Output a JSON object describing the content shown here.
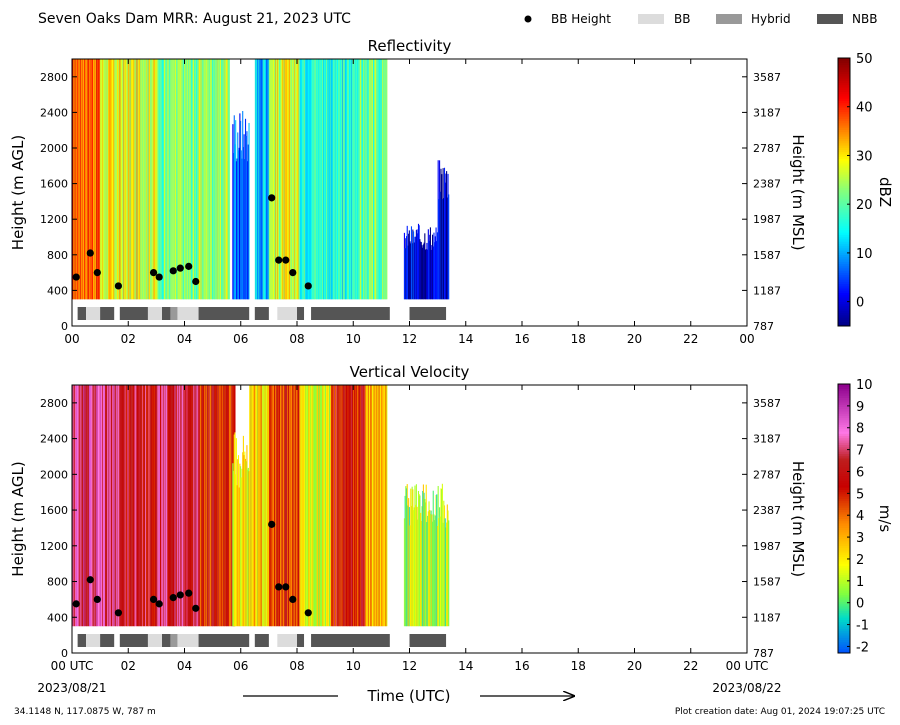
{
  "header": {
    "title": "Seven Oaks Dam MRR:  August 21, 2023 UTC",
    "legend": [
      {
        "label": "BB Height",
        "kind": "dot",
        "color": "#000000"
      },
      {
        "label": "BB",
        "kind": "bar",
        "color": "#dcdcdc"
      },
      {
        "label": "Hybrid",
        "kind": "bar",
        "color": "#999999"
      },
      {
        "label": "NBB",
        "kind": "bar",
        "color": "#555555"
      }
    ]
  },
  "footer": {
    "location": "34.1148 N, 117.0875 W, 787 m",
    "creation": "Plot creation date: Aug 01, 2024 19:07:25 UTC",
    "xlabel": "Time (UTC)",
    "start_date": "2023/08/21",
    "end_date": "2023/08/22"
  },
  "chart_data": [
    {
      "type": "heatmap",
      "title": "Reflectivity",
      "xlabel": "",
      "ylabel": "Height (m AGL)",
      "y2label": "Height (m MSL)",
      "xlim": [
        0,
        24
      ],
      "ylim": [
        0,
        3000
      ],
      "x_tick_labels": [
        "00",
        "02",
        "04",
        "06",
        "08",
        "10",
        "12",
        "14",
        "16",
        "18",
        "20",
        "22",
        "00"
      ],
      "y_ticks": [
        0,
        400,
        800,
        1200,
        1600,
        2000,
        2400,
        2800
      ],
      "y2_tick_labels": [
        "787",
        "1187",
        "1587",
        "1987",
        "2387",
        "2787",
        "3187",
        "3587"
      ],
      "colorbar": {
        "label": "dBZ",
        "min": -5,
        "max": 50,
        "ticks": [
          0,
          10,
          20,
          30,
          40,
          50
        ],
        "tick_labels": [
          "0",
          "10",
          "20",
          "30",
          "40",
          "50"
        ],
        "scheme": "jet"
      },
      "segments": [
        {
          "x0": 0.0,
          "x1": 1.0,
          "top": 3000,
          "value": 38
        },
        {
          "x0": 1.0,
          "x1": 3.0,
          "top": 3000,
          "value": 28
        },
        {
          "x0": 3.0,
          "x1": 4.5,
          "top": 3000,
          "value": 22
        },
        {
          "x0": 4.5,
          "x1": 5.6,
          "top": 3000,
          "value": 24
        },
        {
          "x0": 5.7,
          "x1": 6.3,
          "top": 2150,
          "value": 6
        },
        {
          "x0": 6.5,
          "x1": 7.0,
          "top": 3000,
          "value": 12
        },
        {
          "x0": 7.0,
          "x1": 8.1,
          "top": 3000,
          "value": 27
        },
        {
          "x0": 8.1,
          "x1": 9.1,
          "top": 3000,
          "value": 18
        },
        {
          "x0": 9.1,
          "x1": 10.0,
          "top": 3000,
          "value": 16
        },
        {
          "x0": 10.0,
          "x1": 11.2,
          "top": 3000,
          "value": 20
        },
        {
          "x0": 11.8,
          "x1": 13.0,
          "top": 1000,
          "value": 0
        },
        {
          "x0": 13.0,
          "x1": 13.4,
          "top": 1650,
          "value": -1
        }
      ]
    },
    {
      "type": "heatmap",
      "title": "Vertical Velocity",
      "xlabel": "Time (UTC)",
      "ylabel": "Height (m AGL)",
      "y2label": "Height (m MSL)",
      "xlim": [
        0,
        24
      ],
      "ylim": [
        0,
        3000
      ],
      "x_tick_labels": [
        "00 UTC",
        "02",
        "04",
        "06",
        "08",
        "10",
        "12",
        "14",
        "16",
        "18",
        "20",
        "22",
        "00 UTC"
      ],
      "y_ticks": [
        0,
        400,
        800,
        1200,
        1600,
        2000,
        2400,
        2800
      ],
      "y2_tick_labels": [
        "787",
        "1187",
        "1587",
        "1987",
        "2387",
        "2787",
        "3187",
        "3587"
      ],
      "colorbar": {
        "label": "m/s",
        "min": -2.3,
        "max": 10,
        "ticks": [
          -2,
          -1,
          0,
          1,
          2,
          3,
          4,
          5,
          6,
          7,
          8,
          9,
          10
        ],
        "tick_labels": [
          "-2",
          "-1",
          "0",
          "1",
          "2",
          "3",
          "4",
          "5",
          "6",
          "7",
          "8",
          "9",
          "10"
        ],
        "scheme": "velocity"
      },
      "segments": [
        {
          "x0": 0.0,
          "x1": 1.6,
          "top": 3000,
          "value": 7.5
        },
        {
          "x0": 1.6,
          "x1": 3.0,
          "top": 3000,
          "value": 6.2
        },
        {
          "x0": 3.0,
          "x1": 4.5,
          "top": 3000,
          "value": 6.6
        },
        {
          "x0": 4.5,
          "x1": 5.8,
          "top": 3000,
          "value": 5.4
        },
        {
          "x0": 5.7,
          "x1": 6.3,
          "top": 2150,
          "value": 2.0
        },
        {
          "x0": 6.3,
          "x1": 7.0,
          "top": 3000,
          "value": 2.5
        },
        {
          "x0": 7.0,
          "x1": 8.1,
          "top": 3000,
          "value": 5.0
        },
        {
          "x0": 8.1,
          "x1": 9.2,
          "top": 3000,
          "value": 1.5
        },
        {
          "x0": 9.2,
          "x1": 10.4,
          "top": 3000,
          "value": 5.5
        },
        {
          "x0": 10.4,
          "x1": 11.2,
          "top": 3000,
          "value": 3.0
        },
        {
          "x0": 11.8,
          "x1": 13.4,
          "top": 1650,
          "value": 1.0
        }
      ]
    }
  ],
  "bb_heights": [
    {
      "x": 0.15,
      "y": 550
    },
    {
      "x": 0.65,
      "y": 820
    },
    {
      "x": 0.9,
      "y": 600
    },
    {
      "x": 1.65,
      "y": 450
    },
    {
      "x": 2.9,
      "y": 600
    },
    {
      "x": 3.1,
      "y": 550
    },
    {
      "x": 3.6,
      "y": 620
    },
    {
      "x": 3.85,
      "y": 650
    },
    {
      "x": 4.15,
      "y": 670
    },
    {
      "x": 4.4,
      "y": 500
    },
    {
      "x": 7.1,
      "y": 1440
    },
    {
      "x": 7.35,
      "y": 740
    },
    {
      "x": 7.6,
      "y": 740
    },
    {
      "x": 7.85,
      "y": 600
    },
    {
      "x": 8.4,
      "y": 450
    }
  ],
  "bb_classification": [
    {
      "x0": 0.2,
      "x1": 0.5,
      "class": "NBB"
    },
    {
      "x0": 0.5,
      "x1": 1.0,
      "class": "BB"
    },
    {
      "x0": 1.0,
      "x1": 1.5,
      "class": "NBB"
    },
    {
      "x0": 1.7,
      "x1": 2.7,
      "class": "NBB"
    },
    {
      "x0": 2.7,
      "x1": 3.2,
      "class": "BB"
    },
    {
      "x0": 3.2,
      "x1": 3.5,
      "class": "NBB"
    },
    {
      "x0": 3.5,
      "x1": 3.75,
      "class": "Hybrid"
    },
    {
      "x0": 3.75,
      "x1": 4.5,
      "class": "BB"
    },
    {
      "x0": 4.5,
      "x1": 6.3,
      "class": "NBB"
    },
    {
      "x0": 6.5,
      "x1": 7.0,
      "class": "NBB"
    },
    {
      "x0": 7.3,
      "x1": 8.0,
      "class": "BB"
    },
    {
      "x0": 8.0,
      "x1": 8.25,
      "class": "NBB"
    },
    {
      "x0": 8.5,
      "x1": 11.3,
      "class": "NBB"
    },
    {
      "x0": 12.0,
      "x1": 13.3,
      "class": "NBB"
    }
  ]
}
